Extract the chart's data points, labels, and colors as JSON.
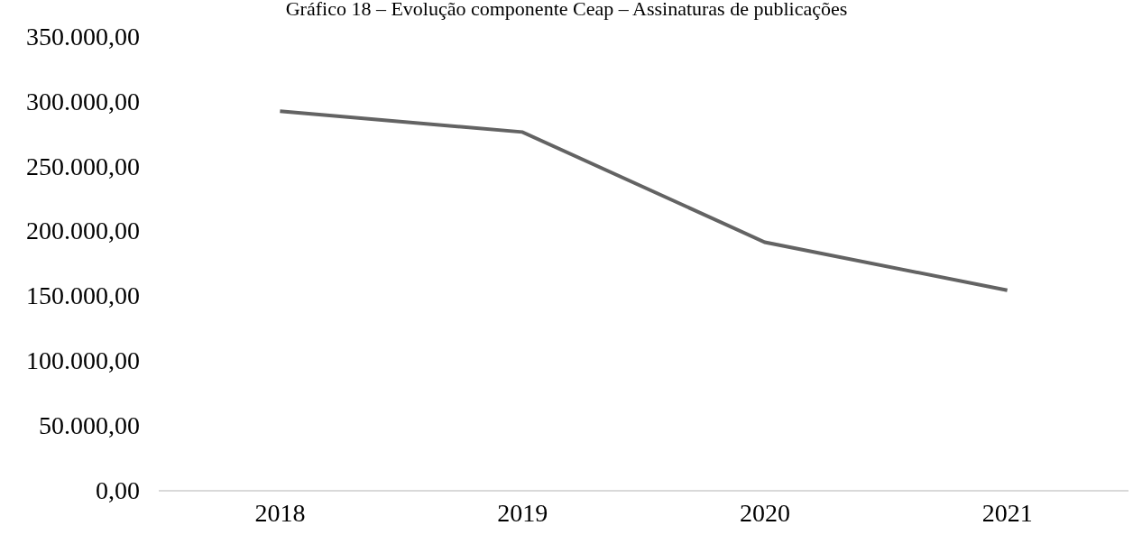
{
  "chart_data": {
    "type": "line",
    "title": "Gráfico 18 – Evolução componente Ceap – Assinaturas de publicações",
    "categories": [
      "2018",
      "2019",
      "2020",
      "2021"
    ],
    "series": [
      {
        "color": "#636363",
        "values": [
          292000,
          276000,
          191000,
          154000
        ]
      }
    ],
    "ylim": [
      0,
      350000
    ],
    "yticks": [
      {
        "value": 0,
        "label": "0,00"
      },
      {
        "value": 50000,
        "label": "50.000,00"
      },
      {
        "value": 100000,
        "label": "100.000,00"
      },
      {
        "value": 150000,
        "label": "150.000,00"
      },
      {
        "value": 200000,
        "label": "200.000,00"
      },
      {
        "value": 250000,
        "label": "250.000,00"
      },
      {
        "value": 300000,
        "label": "300.000,00"
      },
      {
        "value": 350000,
        "label": "350.000,00"
      }
    ],
    "grid": false,
    "marker": "none",
    "line_style": "solid"
  }
}
